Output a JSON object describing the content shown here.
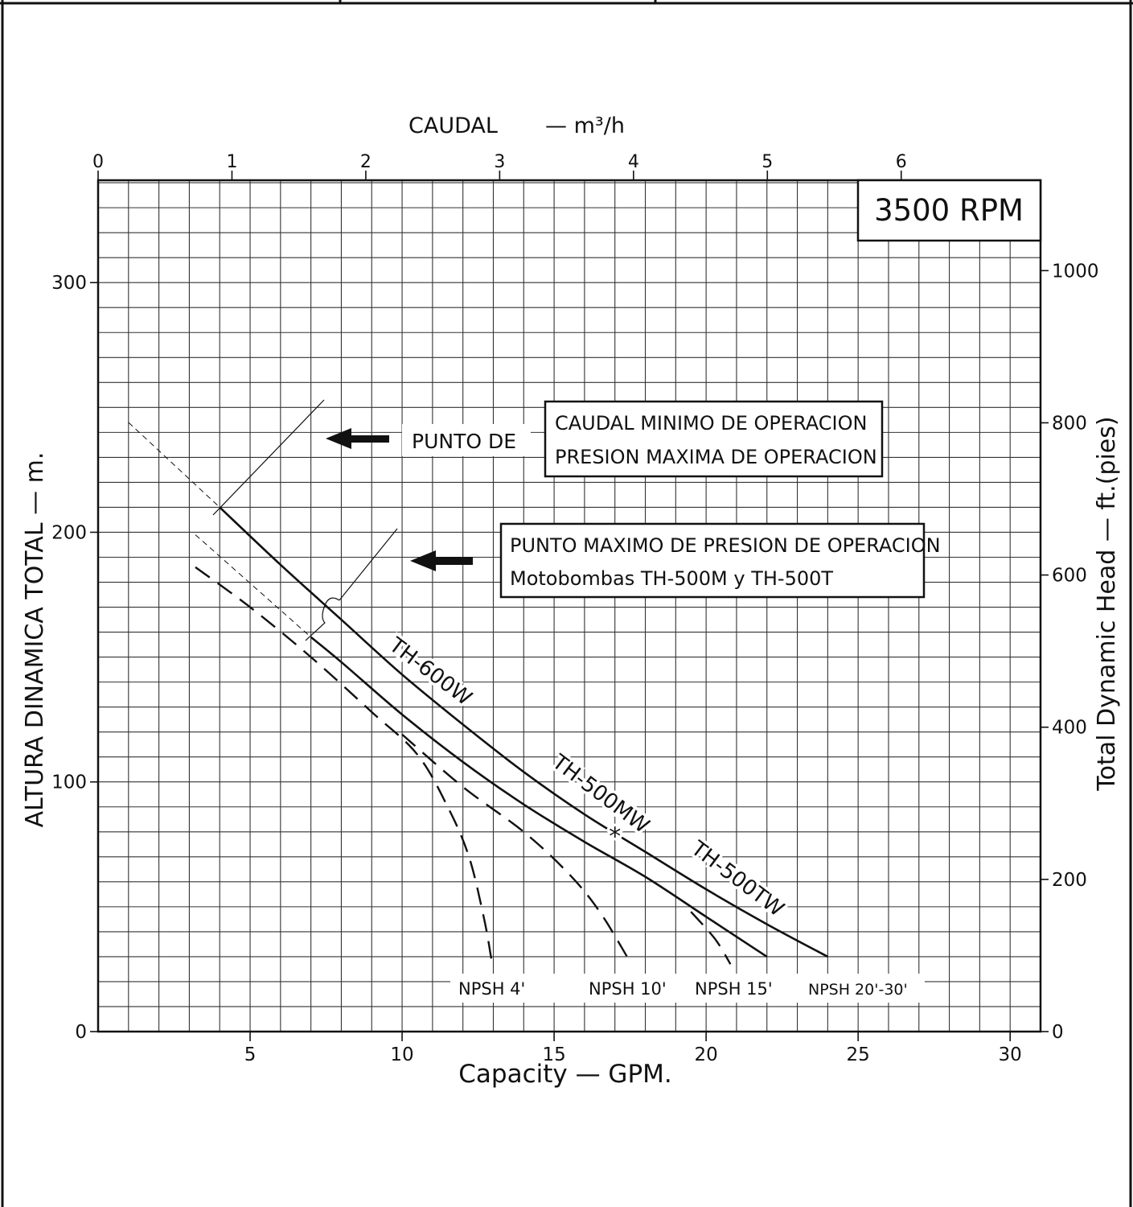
{
  "chart_data": {
    "type": "line",
    "rpm_label": "3500 RPM",
    "x_top": {
      "label": "CAUDAL",
      "unit": "m³/h",
      "ticks": [
        "0",
        "1",
        "2",
        "3",
        "4",
        "5",
        "6"
      ],
      "range": [
        0,
        7
      ]
    },
    "x_bottom": {
      "label": "Capacity — GPM.",
      "ticks": [
        "5",
        "10",
        "15",
        "20",
        "25",
        "30"
      ],
      "range": [
        0,
        31
      ]
    },
    "y_left": {
      "label": "ALTURA DINAMICA TOTAL  —  m.",
      "ticks": [
        "0",
        "100",
        "200",
        "300"
      ],
      "range": [
        0,
        341
      ]
    },
    "y_right": {
      "label": "Total Dynamic Head  —  ft.(pies)",
      "ticks": [
        "0",
        "200",
        "400",
        "600",
        "800",
        "1000"
      ]
    },
    "series": [
      {
        "name": "TH-600W",
        "style": "solid",
        "x": [
          4,
          6,
          8,
          10,
          12,
          14,
          16,
          18,
          20,
          22,
          24
        ],
        "y": [
          210,
          187,
          165,
          143,
          123,
          104,
          87,
          72,
          57,
          43,
          30
        ]
      },
      {
        "name": "TH-500MW * TH-500TW",
        "style": "solid",
        "x": [
          7,
          8,
          10,
          12,
          14,
          16,
          18,
          20,
          22
        ],
        "y": [
          158,
          148,
          127,
          108,
          91,
          76,
          62,
          46,
          30
        ]
      },
      {
        "name": "NPSH 4'",
        "style": "dashed",
        "x": [
          3.2,
          5,
          7,
          9,
          10.5,
          11.5,
          12.2,
          12.7,
          12.95
        ],
        "y": [
          186,
          170,
          150,
          128,
          111,
          90,
          70,
          45,
          28
        ]
      },
      {
        "name": "NPSH 10'",
        "style": "dashed",
        "x": [
          10,
          12,
          14,
          15.5,
          16.5,
          17.4
        ],
        "y": [
          119,
          98,
          80,
          63,
          48,
          30
        ]
      },
      {
        "name": "NPSH 15'",
        "style": "dashed",
        "x": [
          19.5,
          20.3,
          20.8
        ],
        "y": [
          48,
          37,
          27
        ]
      }
    ],
    "guides": [
      {
        "name": "ext-600",
        "x": [
          1,
          4
        ],
        "y": [
          244,
          210
        ]
      },
      {
        "name": "ext-500",
        "x": [
          3.2,
          7
        ],
        "y": [
          199,
          158
        ]
      }
    ],
    "series_labels": [
      {
        "text": "TH-600W",
        "x": 10.8,
        "y": 142
      },
      {
        "text": "TH-500MW",
        "x": 16.4,
        "y": 93
      },
      {
        "text": "*",
        "x": 17,
        "y": 75
      },
      {
        "text": "TH-500TW",
        "x": 20.9,
        "y": 59
      }
    ],
    "npsh_labels": [
      "NPSH 4'",
      "NPSH 10'",
      "NPSH 15'",
      "NPSH 20'-30'"
    ],
    "annotations": {
      "punto_de": "PUNTO DE",
      "box1_line1": "CAUDAL MINIMO DE OPERACION",
      "box1_line2": "PRESION MAXIMA DE OPERACION",
      "box2_line1": "PUNTO MAXIMO DE PRESION DE OPERACION",
      "box2_line2": "Motobombas TH-500M y TH-500T"
    }
  }
}
